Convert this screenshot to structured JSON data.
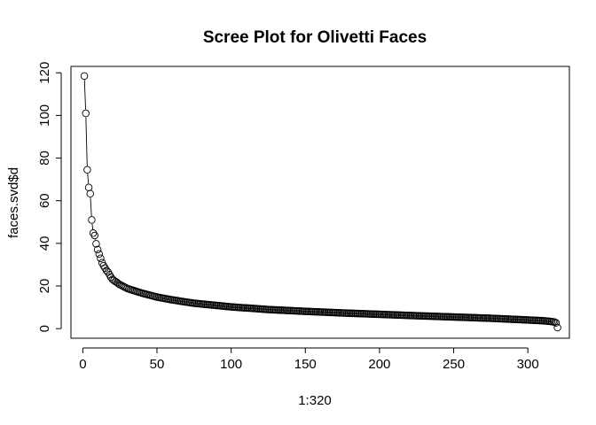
{
  "chart_data": {
    "type": "scatter",
    "style": "b",
    "title": "Scree Plot for Olivetti Faces",
    "xlabel": "1:320",
    "ylabel": "faces.svd$d",
    "xlim": [
      -8,
      328
    ],
    "ylim": [
      -4.5,
      123
    ],
    "xticks": [
      0,
      50,
      100,
      150,
      200,
      250,
      300
    ],
    "yticks": [
      0,
      20,
      40,
      60,
      80,
      100,
      120
    ],
    "n_points": 320,
    "x_range": [
      1,
      320
    ],
    "leading_values": [
      118.5,
      101,
      74.5,
      66.2,
      63.3,
      51,
      44.8,
      43.7,
      39.8,
      37.1,
      35,
      33,
      30.9,
      29.5,
      28.4,
      27.2,
      26.5,
      25.3,
      24.1,
      23.1
    ],
    "tail_anchors": [
      [
        20,
        23.1
      ],
      [
        25,
        20.6
      ],
      [
        30,
        18.8
      ],
      [
        40,
        16.6
      ],
      [
        50,
        14.8
      ],
      [
        60,
        13.5
      ],
      [
        75,
        11.9
      ],
      [
        100,
        10.2
      ],
      [
        125,
        8.95
      ],
      [
        150,
        8.1
      ],
      [
        175,
        7.35
      ],
      [
        200,
        6.7
      ],
      [
        225,
        6.05
      ],
      [
        250,
        5.45
      ],
      [
        275,
        4.85
      ],
      [
        300,
        4.05
      ],
      [
        310,
        3.7
      ],
      [
        315,
        3.4
      ],
      [
        318,
        3.1
      ],
      [
        319,
        2.7
      ],
      [
        320,
        0.5
      ]
    ],
    "colors": {
      "points": "#000000",
      "background": "#ffffff"
    }
  }
}
